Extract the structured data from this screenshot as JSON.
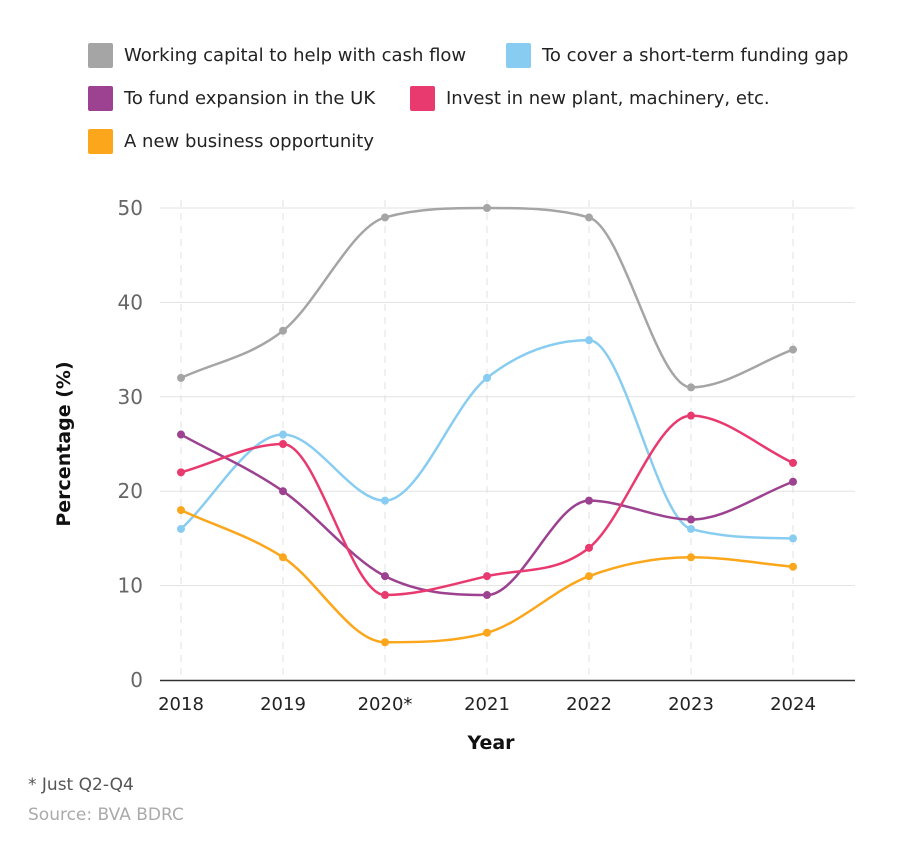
{
  "chart_data": {
    "type": "line",
    "xlabel": "Year",
    "ylabel": "Percentage (%)",
    "categories": [
      "2018",
      "2019",
      "2020*",
      "2021",
      "2022",
      "2023",
      "2024"
    ],
    "ylim": [
      0,
      50
    ],
    "yticks": [
      "0",
      "10",
      "20",
      "30",
      "40",
      "50"
    ],
    "grid": true,
    "legend_placement": "top",
    "series": [
      {
        "name": "Working capital to help with cash flow",
        "color": "#a5a5a5",
        "values": [
          32,
          37,
          49,
          50,
          49,
          31,
          35
        ]
      },
      {
        "name": "To cover a short-term funding gap",
        "color": "#88cdf1",
        "values": [
          16,
          26,
          19,
          32,
          36,
          16,
          15
        ]
      },
      {
        "name": "To fund expansion in the UK",
        "color": "#9c4290",
        "values": [
          26,
          20,
          11,
          9,
          19,
          17,
          21
        ]
      },
      {
        "name": "Invest in new plant, machinery, etc.",
        "color": "#e93a6f",
        "values": [
          22,
          25,
          9,
          11,
          14,
          28,
          23
        ]
      },
      {
        "name": "A new business opportunity",
        "color": "#fba61b",
        "values": [
          18,
          13,
          4,
          5,
          11,
          13,
          12
        ]
      }
    ]
  },
  "footnote": "* Just Q2-Q4",
  "source": "Source: BVA BDRC"
}
